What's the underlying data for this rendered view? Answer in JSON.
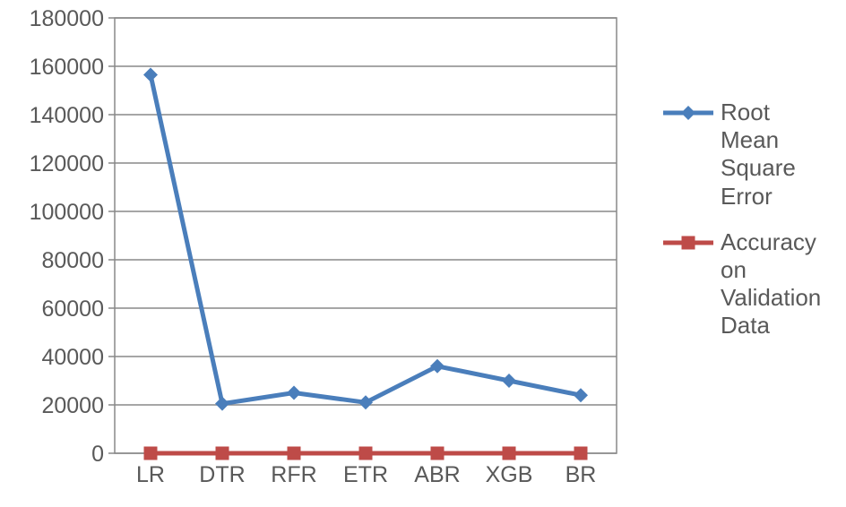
{
  "chart": {
    "type": "line",
    "background_color": "#ffffff",
    "plot_border_color": "#888888",
    "grid_color": "#888888",
    "tick_color": "#888888",
    "label_color": "#595959",
    "axis_label_fontsize": 25,
    "categories": [
      "LR",
      "DTR",
      "RFR",
      "ETR",
      "ABR",
      "XGB",
      "BR"
    ],
    "ylim": [
      0,
      180000
    ],
    "ytick_step": 20000,
    "series": [
      {
        "name": "Root Mean Square Error",
        "values": [
          156500,
          20500,
          25000,
          21000,
          36000,
          30000,
          24000
        ],
        "line_color": "#4a7ebb",
        "line_width": 5,
        "marker": "diamond",
        "marker_size": 16,
        "marker_fill": "#4a7ebb"
      },
      {
        "name": "Accuracy on Validation Data",
        "values": [
          0,
          0,
          0,
          0,
          0,
          0,
          0
        ],
        "line_color": "#be4b48",
        "line_width": 5,
        "marker": "square",
        "marker_size": 15,
        "marker_fill": "#be4b48"
      }
    ]
  },
  "legend": {
    "fontsize": 26,
    "text_color": "#595959",
    "entries": [
      {
        "label": "Root Mean Square Error",
        "color": "#4a7ebb",
        "marker": "diamond"
      },
      {
        "label": "Accuracy on Validation Data",
        "color": "#be4b48",
        "marker": "square"
      }
    ]
  }
}
